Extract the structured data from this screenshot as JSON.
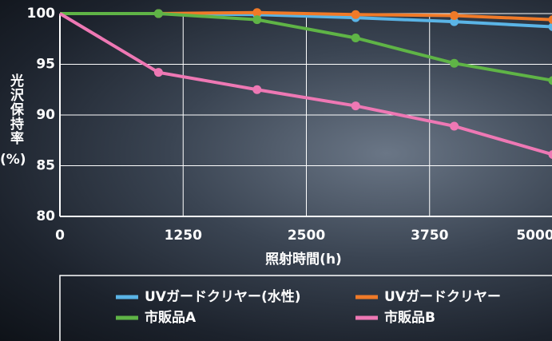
{
  "chart_data": {
    "type": "line",
    "x_label": "照射時間(h)",
    "y_label": "光沢保持率",
    "y_label_unit": "(%)",
    "x": [
      0,
      1000,
      2000,
      3000,
      4000,
      5000
    ],
    "series": [
      {
        "name": "UVガードクリヤー(水性)",
        "color": "#5ab4e6",
        "values": [
          100,
          100,
          99.9,
          99.6,
          99.2,
          98.7
        ]
      },
      {
        "name": "UVガードクリヤー",
        "color": "#f07a28",
        "values": [
          100,
          100,
          100.1,
          99.9,
          99.8,
          99.4
        ]
      },
      {
        "name": "市販品A",
        "color": "#5fb446",
        "values": [
          100,
          100,
          99.4,
          97.6,
          95.1,
          93.4
        ]
      },
      {
        "name": "市販品B",
        "color": "#ee78b4",
        "values": [
          100,
          94.2,
          92.5,
          90.9,
          88.9,
          86.1
        ]
      }
    ],
    "xlim": [
      0,
      5000
    ],
    "xticks": [
      0,
      1250,
      2500,
      3750,
      5000
    ],
    "ylim": [
      80,
      100
    ],
    "yticks": [
      80,
      85,
      90,
      95,
      100
    ],
    "grid": true
  }
}
